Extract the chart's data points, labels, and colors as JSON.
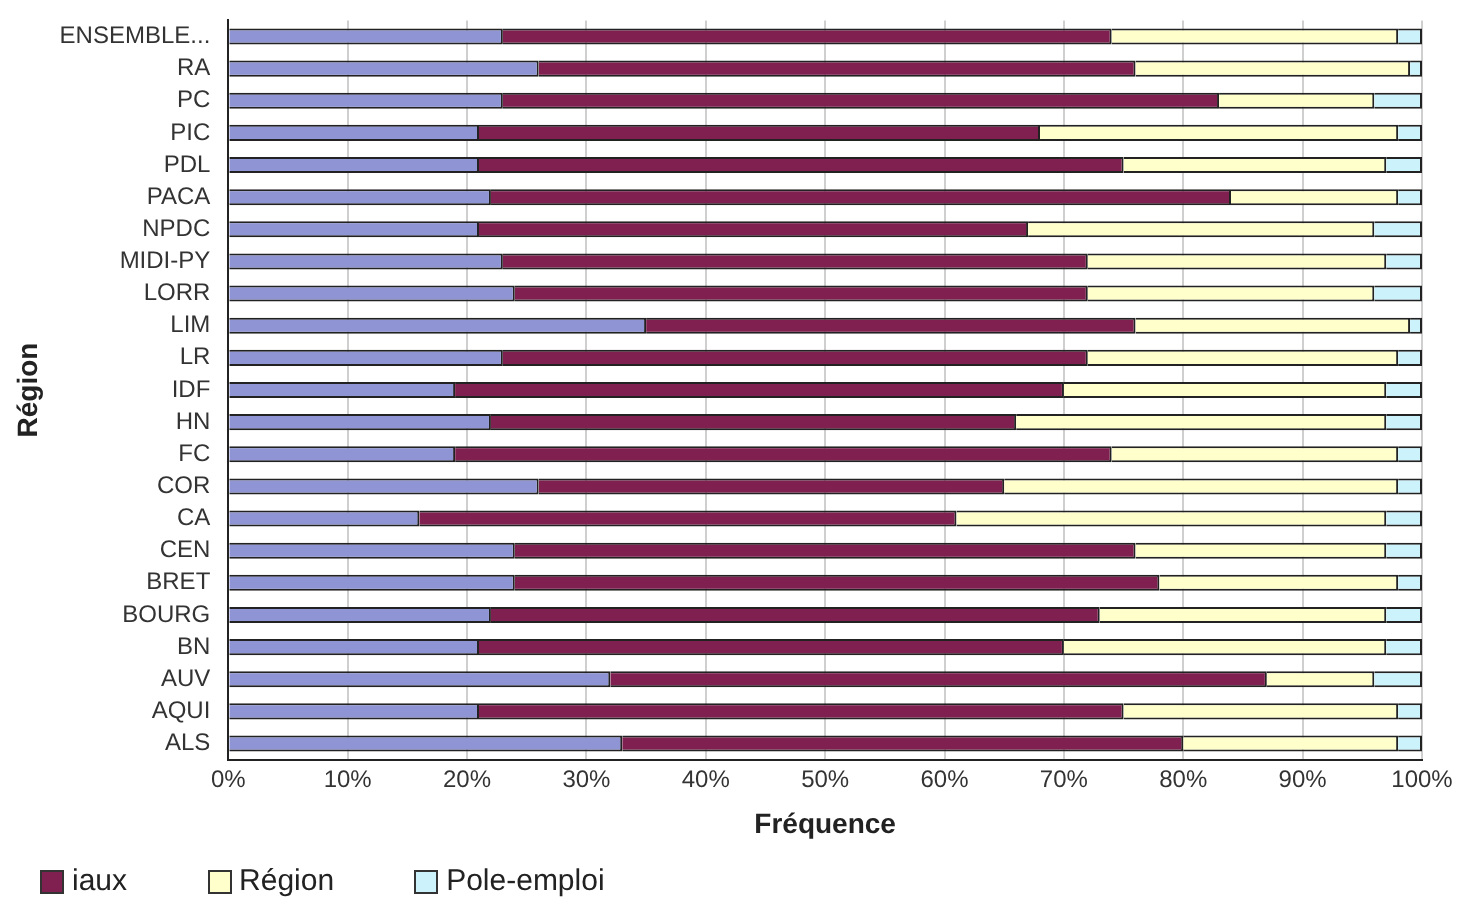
{
  "chart_data": {
    "type": "bar",
    "orientation": "horizontal",
    "stacked": true,
    "xlabel": "Fréquence",
    "ylabel": "Région",
    "categories": [
      "ENSEMBLE...",
      "RA",
      "PC",
      "PIC",
      "PDL",
      "PACA",
      "NPDC",
      "MIDI-PY",
      "LORR",
      "LIM",
      "LR",
      "IDF",
      "HN",
      "FC",
      "COR",
      "CA",
      "CEN",
      "BRET",
      "BOURG",
      "BN",
      "AUV",
      "AQUI",
      "ALS"
    ],
    "series": [
      {
        "color": "#8f94d4",
        "values": [
          23,
          26,
          23,
          21,
          21,
          22,
          21,
          23,
          24,
          35,
          23,
          19,
          22,
          19,
          26,
          16,
          24,
          24,
          22,
          21,
          32,
          21,
          33
        ]
      },
      {
        "name": "iaux",
        "color": "#7f2050",
        "values": [
          51,
          50,
          60,
          47,
          54,
          62,
          46,
          49,
          48,
          41,
          49,
          51,
          44,
          55,
          39,
          45,
          52,
          54,
          51,
          49,
          55,
          54,
          47
        ]
      },
      {
        "name": "Région",
        "color": "#ffffcc",
        "values": [
          24,
          23,
          13,
          30,
          22,
          14,
          29,
          25,
          24,
          23,
          26,
          27,
          31,
          24,
          33,
          36,
          21,
          20,
          24,
          27,
          9,
          23,
          18
        ]
      },
      {
        "name": "Pole-emploi",
        "color": "#ccf2fb",
        "values": [
          2,
          1,
          4,
          2,
          3,
          2,
          4,
          3,
          4,
          1,
          2,
          3,
          3,
          2,
          2,
          3,
          3,
          2,
          3,
          3,
          4,
          2,
          2
        ]
      }
    ],
    "xlim": [
      0,
      100
    ],
    "xticks": [
      {
        "value": 0,
        "label": "0%"
      },
      {
        "value": 10,
        "label": "10%"
      },
      {
        "value": 20,
        "label": "20%"
      },
      {
        "value": 30,
        "label": "30%"
      },
      {
        "value": 40,
        "label": "40%"
      },
      {
        "value": 50,
        "label": "50%"
      },
      {
        "value": 60,
        "label": "60%"
      },
      {
        "value": 70,
        "label": "70%"
      },
      {
        "value": 80,
        "label": "80%"
      },
      {
        "value": 90,
        "label": "90%"
      },
      {
        "value": 100,
        "label": "100%"
      }
    ],
    "grid": "x",
    "legend": "bottom left"
  }
}
